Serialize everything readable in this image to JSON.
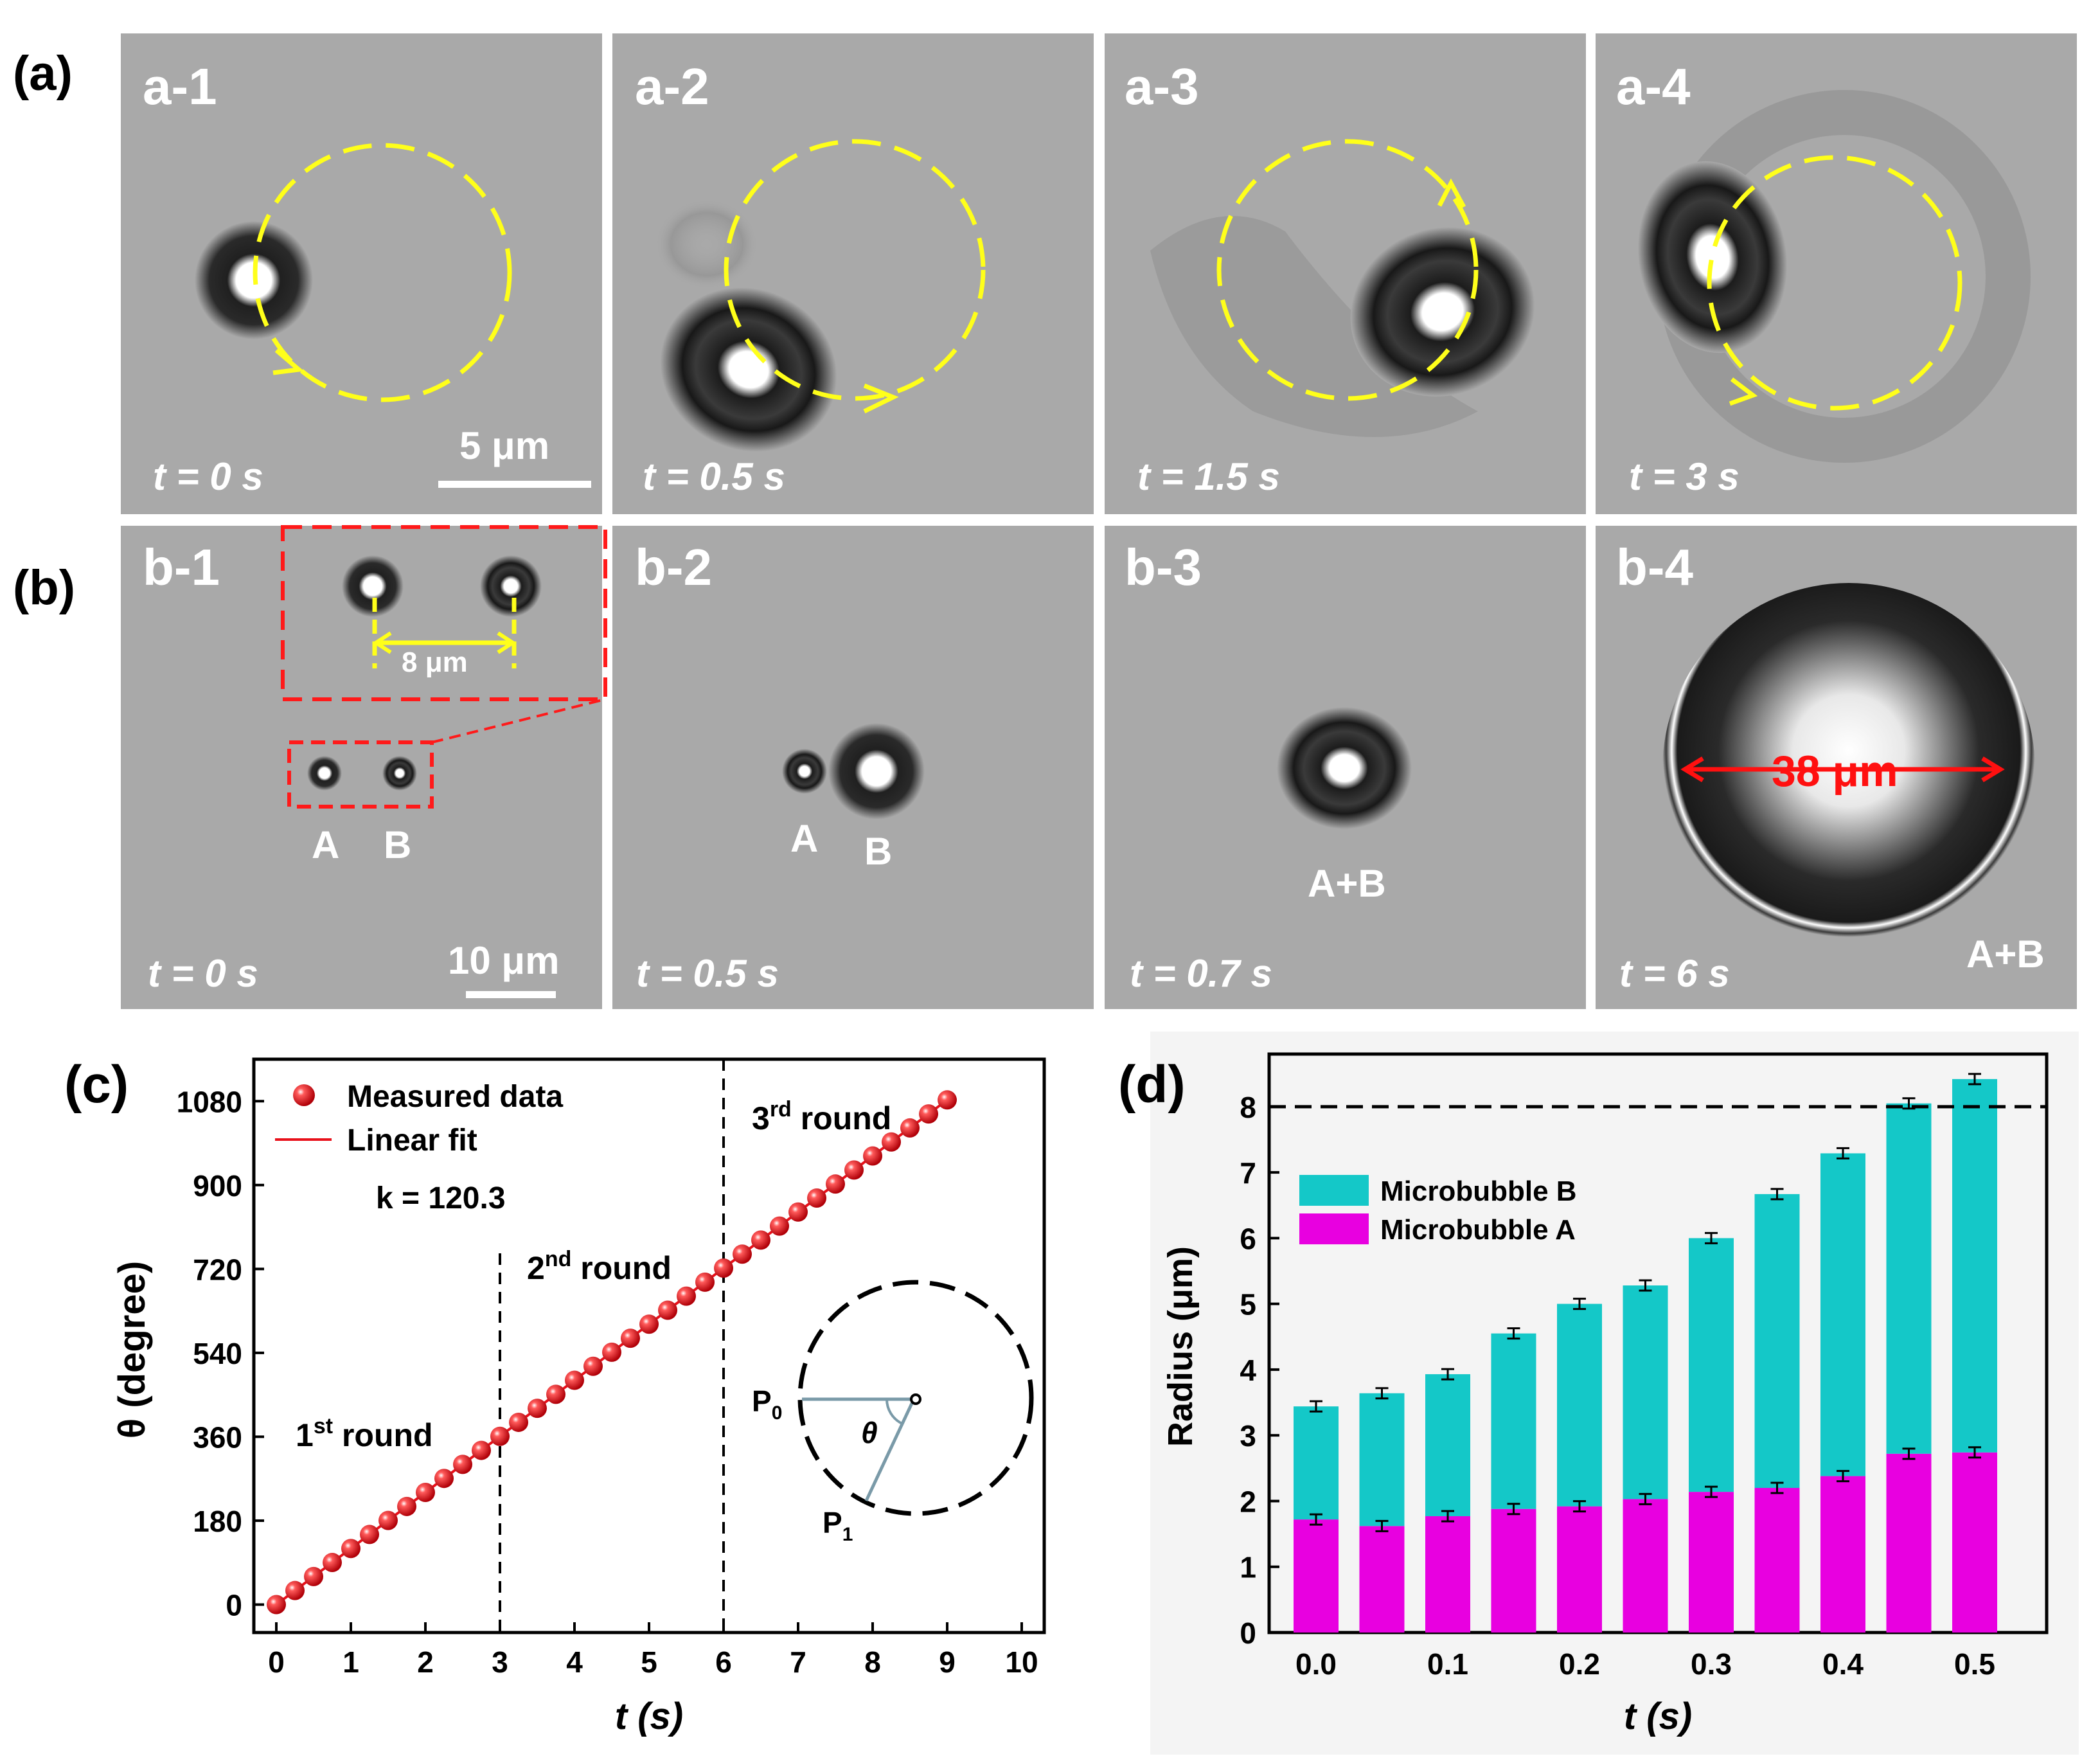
{
  "panel_a": {
    "label": "(a)",
    "frames": [
      {
        "id": "a-1",
        "time": "t = 0 s"
      },
      {
        "id": "a-2",
        "time": "t = 0.5 s"
      },
      {
        "id": "a-3",
        "time": "t = 1.5 s"
      },
      {
        "id": "a-4",
        "time": "t = 3 s"
      }
    ],
    "scale_bar": "5 μm"
  },
  "panel_b": {
    "label": "(b)",
    "frames": [
      {
        "id": "b-1",
        "time": "t = 0 s"
      },
      {
        "id": "b-2",
        "time": "t = 0.5 s"
      },
      {
        "id": "b-3",
        "time": "t = 0.7 s"
      },
      {
        "id": "b-4",
        "time": "t = 6 s"
      }
    ],
    "scale_bar": "10 μm",
    "inset_distance": "8 μm",
    "bubble_a": "A",
    "bubble_b": "B",
    "merged": "A+B",
    "diameter": "38 μm"
  },
  "colors": {
    "micrograph_bg": "#a9a9a9",
    "trajectory": "#ffff1a",
    "marker_red": "#e8101a",
    "cyan": "#14c8c8",
    "magenta": "#e800e0"
  },
  "chart_data": [
    {
      "panel": "(c)",
      "type": "scatter",
      "xlabel": "t (s)",
      "ylabel": "θ (degree)",
      "xlim": [
        0,
        10
      ],
      "ylim": [
        -60,
        1170
      ],
      "xticks": [
        "0",
        "1",
        "2",
        "3",
        "4",
        "5",
        "6",
        "7",
        "8",
        "9",
        "10"
      ],
      "yticks": [
        "0",
        "180",
        "360",
        "540",
        "720",
        "900",
        "1080"
      ],
      "series": [
        {
          "name": "Measured data",
          "step": 0.25,
          "x_start": 0,
          "x_end": 9,
          "slope": 120.3
        },
        {
          "name": "Linear fit",
          "slope": 120.3
        }
      ],
      "fit_label": "k = 120.3",
      "round_lines": [
        3,
        6
      ],
      "annotations": {
        "r1": "1",
        "r1_sup": "st",
        "r2": "2",
        "r2_sup": "nd",
        "r3": "3",
        "r3_sup": "rd",
        "round_word": " round",
        "p0": "P",
        "p0_sub": "0",
        "p1": "P",
        "p1_sub": "1",
        "theta": "θ"
      }
    },
    {
      "panel": "(d)",
      "type": "bar",
      "stacked": true,
      "xlabel": "t (s)",
      "ylabel": "Radius (μm)",
      "ylim": [
        0,
        8.8
      ],
      "yticks": [
        "0",
        "1",
        "2",
        "3",
        "4",
        "5",
        "6",
        "7",
        "8"
      ],
      "x": [
        0.0,
        0.05,
        0.1,
        0.15,
        0.2,
        0.25,
        0.3,
        0.35,
        0.4,
        0.45,
        0.5
      ],
      "xtick_labels": [
        "0.0",
        "0.1",
        "0.2",
        "0.3",
        "0.4",
        "0.5"
      ],
      "reference_line": 8,
      "series": [
        {
          "name": "Microbubble A",
          "values": [
            1.72,
            1.62,
            1.77,
            1.88,
            1.92,
            2.03,
            2.14,
            2.2,
            2.38,
            2.72,
            2.74
          ]
        },
        {
          "name": "Microbubble B",
          "values": [
            1.72,
            2.02,
            2.16,
            2.67,
            3.08,
            3.25,
            3.86,
            4.47,
            4.91,
            5.33,
            5.68
          ]
        }
      ]
    }
  ]
}
